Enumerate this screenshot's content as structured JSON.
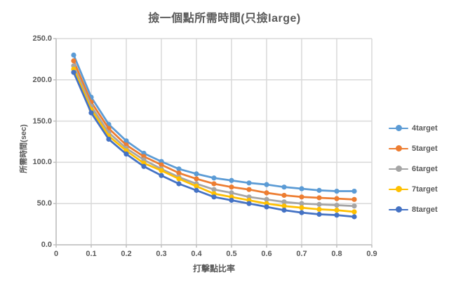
{
  "colors": {
    "background": "#ffffff",
    "gridline": "#d9d9d9",
    "axis_line": "#bfbfbf",
    "text": "#595959"
  },
  "chart_data": {
    "type": "line",
    "title": "撿一個點所需時間(只撿large)",
    "xlabel": "打擊點比率",
    "ylabel": "所需時間(sec)",
    "xlim": [
      0,
      0.9
    ],
    "ylim": [
      0,
      250
    ],
    "grid": true,
    "legend_position": "right",
    "x_ticks": [
      "0",
      "0.1",
      "0.2",
      "0.3",
      "0.4",
      "0.5",
      "0.6",
      "0.7",
      "0.8",
      "0.9"
    ],
    "y_ticks": [
      "0.0",
      "50.0",
      "100.0",
      "150.0",
      "200.0",
      "250.0"
    ],
    "x": [
      0.05,
      0.1,
      0.15,
      0.2,
      0.25,
      0.3,
      0.35,
      0.4,
      0.45,
      0.5,
      0.55,
      0.6,
      0.65,
      0.7,
      0.75,
      0.8,
      0.85
    ],
    "series": [
      {
        "name": "4target",
        "color": "#5b9bd5",
        "values": [
          230,
          179,
          146,
          126,
          111,
          101,
          92,
          86,
          81,
          78,
          75,
          73,
          70,
          68,
          66,
          65,
          65
        ]
      },
      {
        "name": "5target",
        "color": "#ed7d31",
        "values": [
          223,
          173,
          141,
          121,
          107,
          97,
          87,
          80,
          74,
          70,
          67,
          63,
          60,
          58,
          57,
          56,
          55
        ]
      },
      {
        "name": "6target",
        "color": "#a5a5a5",
        "values": [
          217,
          168,
          136,
          117,
          103,
          92,
          82,
          74,
          67,
          63,
          58,
          55,
          52,
          50,
          49,
          48,
          47
        ]
      },
      {
        "name": "7target",
        "color": "#ffc000",
        "values": [
          213,
          164,
          132,
          114,
          99,
          90,
          80,
          71,
          62,
          58,
          54,
          50,
          47,
          45,
          43,
          42,
          40
        ]
      },
      {
        "name": "8target",
        "color": "#4472c4",
        "values": [
          209,
          160,
          128,
          110,
          95,
          84,
          74,
          66,
          58,
          54,
          50,
          46,
          42,
          39,
          37,
          36,
          34
        ]
      }
    ]
  }
}
